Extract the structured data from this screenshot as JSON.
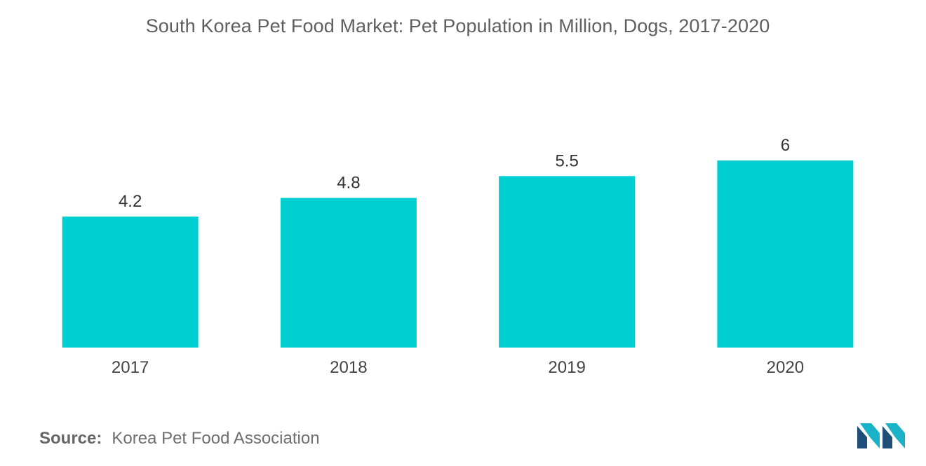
{
  "title": "South Korea Pet Food Market: Pet Population in Million, Dogs, 2017-2020",
  "source": {
    "label": "Source:",
    "text": "Korea Pet Food Association"
  },
  "logo": {
    "icon": "mordor-intelligence-logo-icon",
    "colors": [
      "#1f4e79",
      "#1ab2c7"
    ]
  },
  "colors": {
    "bar": "#00cfd1",
    "axis_text": "#444444",
    "value_text": "#333333"
  },
  "chart_data": {
    "type": "bar",
    "title": "South Korea Pet Food Market: Pet Population in Million, Dogs, 2017-2020",
    "xlabel": "",
    "ylabel": "",
    "categories": [
      "2017",
      "2018",
      "2019",
      "2020"
    ],
    "values": [
      4.2,
      4.8,
      5.5,
      6
    ],
    "value_labels": [
      "4.2",
      "4.8",
      "5.5",
      "6"
    ],
    "ylim": [
      0,
      6
    ],
    "grid": false,
    "legend": "none"
  }
}
